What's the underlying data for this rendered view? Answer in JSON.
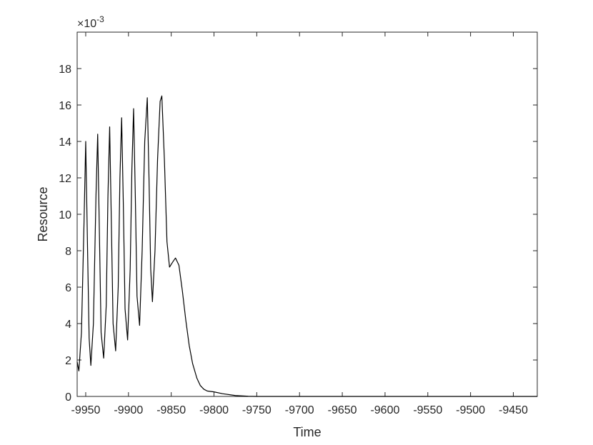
{
  "chart_data": {
    "type": "line",
    "x_label": "Time",
    "y_label": "Resource",
    "y_multiplier": {
      "base": "×10",
      "exponent": "-3"
    },
    "x": [
      -9960,
      -9958,
      -9955,
      -9952,
      -9950,
      -9948,
      -9946,
      -9944,
      -9941,
      -9938,
      -9936,
      -9934,
      -9932,
      -9929,
      -9926,
      -9924,
      -9922,
      -9920,
      -9918,
      -9915,
      -9912,
      -9910,
      -9908,
      -9906,
      -9904,
      -9901,
      -9898,
      -9896,
      -9894,
      -9892,
      -9890,
      -9887,
      -9884,
      -9881,
      -9878,
      -9876,
      -9874,
      -9872,
      -9869,
      -9866,
      -9863,
      -9861,
      -9858,
      -9855,
      -9852,
      -9848,
      -9845,
      -9841,
      -9837,
      -9833,
      -9829,
      -9825,
      -9820,
      -9816,
      -9812,
      -9808,
      -9800,
      -9790,
      -9775,
      -9760,
      -9750,
      -9700,
      -9600,
      -9500,
      -9422
    ],
    "series": [
      {
        "name": "Resource",
        "color": "#000000",
        "values": [
          1.9,
          1.4,
          3.5,
          9.5,
          14.0,
          8.5,
          3.2,
          1.7,
          4.0,
          11.0,
          14.4,
          9.0,
          3.5,
          2.1,
          5.0,
          11.0,
          14.8,
          9.5,
          4.0,
          2.5,
          6.0,
          12.0,
          15.3,
          10.5,
          4.8,
          3.1,
          7.0,
          12.5,
          15.8,
          11.0,
          5.5,
          3.9,
          8.0,
          14.0,
          16.4,
          12.0,
          7.0,
          5.2,
          8.0,
          13.0,
          16.2,
          16.5,
          13.0,
          8.5,
          7.1,
          7.4,
          7.6,
          7.2,
          5.8,
          4.2,
          2.8,
          1.8,
          1.0,
          0.6,
          0.4,
          0.3,
          0.25,
          0.15,
          0.05,
          0.01,
          0,
          0,
          0,
          0,
          0
        ]
      }
    ],
    "xlim": [
      -9960,
      -9422
    ],
    "xticks": [
      -9950,
      -9900,
      -9850,
      -9800,
      -9750,
      -9700,
      -9650,
      -9600,
      -9550,
      -9500,
      -9450
    ],
    "ylim": [
      0,
      20
    ],
    "yticks": [
      0,
      2,
      4,
      6,
      8,
      10,
      12,
      14,
      16,
      18
    ],
    "grid": false
  }
}
